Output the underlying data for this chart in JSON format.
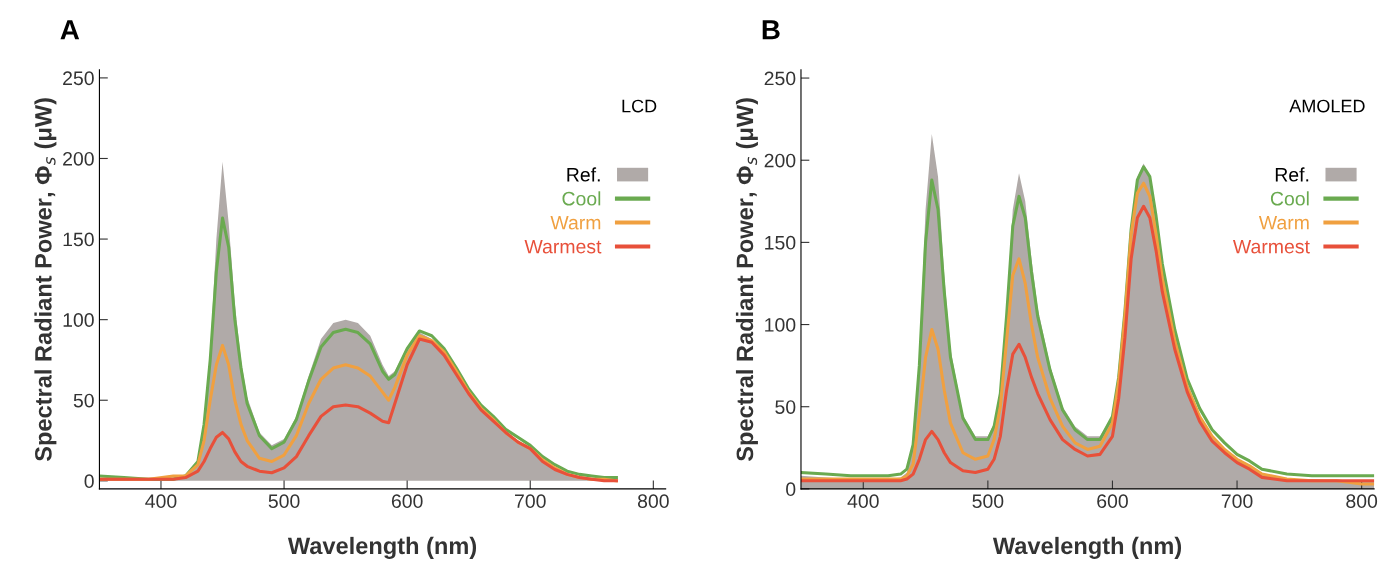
{
  "chart_data": [
    {
      "type": "line",
      "title": "A",
      "xlabel": "Wavelength (nm)",
      "ylabel": "Spectral Radiant Power, Φ$_{s}$ (μW)",
      "annotations": [
        "LCD"
      ],
      "x": [
        350,
        370,
        390,
        410,
        420,
        430,
        435,
        440,
        445,
        450,
        455,
        460,
        465,
        470,
        480,
        490,
        500,
        510,
        520,
        530,
        540,
        550,
        560,
        570,
        580,
        585,
        590,
        600,
        610,
        620,
        630,
        640,
        650,
        660,
        670,
        680,
        690,
        700,
        710,
        720,
        730,
        740,
        750,
        760,
        770
      ],
      "xlim": [
        350,
        810
      ],
      "ylim": [
        -5,
        255
      ],
      "xticks": [
        400,
        500,
        600,
        700,
        800
      ],
      "yticks": [
        0,
        50,
        100,
        150,
        200,
        250
      ],
      "grid": false,
      "legend": "right",
      "series": [
        {
          "name": "Ref.",
          "type": "area",
          "color": "#b0aaa8",
          "values": [
            1,
            1,
            1,
            2,
            4,
            12,
            35,
            80,
            150,
            198,
            160,
            110,
            75,
            52,
            30,
            22,
            26,
            40,
            65,
            88,
            98,
            100,
            98,
            90,
            72,
            65,
            68,
            83,
            92,
            88,
            80,
            68,
            55,
            45,
            38,
            30,
            25,
            20,
            13,
            8,
            4,
            2,
            1,
            0,
            0
          ]
        },
        {
          "name": "Cool",
          "color": "#6aaa50",
          "values": [
            3,
            2,
            1,
            1,
            3,
            12,
            35,
            75,
            130,
            163,
            145,
            100,
            70,
            48,
            28,
            20,
            24,
            38,
            62,
            83,
            92,
            94,
            92,
            85,
            68,
            63,
            66,
            82,
            93,
            90,
            82,
            70,
            57,
            47,
            40,
            32,
            27,
            22,
            15,
            10,
            6,
            4,
            3,
            2,
            2
          ]
        },
        {
          "name": "Warm",
          "color": "#f0a040",
          "values": [
            1,
            1,
            1,
            3,
            3,
            10,
            25,
            50,
            72,
            84,
            72,
            50,
            35,
            25,
            14,
            12,
            16,
            28,
            48,
            63,
            70,
            72,
            70,
            65,
            55,
            50,
            58,
            78,
            90,
            87,
            80,
            68,
            55,
            45,
            38,
            30,
            24,
            20,
            13,
            8,
            4,
            2,
            1,
            1,
            0
          ]
        },
        {
          "name": "Warmest",
          "color": "#e8503a",
          "values": [
            1,
            1,
            1,
            1,
            2,
            6,
            12,
            20,
            27,
            30,
            26,
            18,
            12,
            9,
            6,
            5,
            8,
            15,
            28,
            40,
            46,
            47,
            46,
            42,
            37,
            36,
            48,
            72,
            88,
            86,
            78,
            66,
            54,
            44,
            37,
            30,
            24,
            20,
            12,
            7,
            4,
            2,
            1,
            0,
            0
          ]
        }
      ]
    },
    {
      "type": "line",
      "title": "B",
      "xlabel": "Wavelength (nm)",
      "ylabel": "Spectral Radiant Power, Φ$_{s}$ (μW)",
      "annotations": [
        "AMOLED"
      ],
      "x": [
        350,
        370,
        390,
        410,
        420,
        430,
        435,
        440,
        445,
        450,
        455,
        460,
        465,
        470,
        480,
        490,
        500,
        505,
        510,
        515,
        520,
        525,
        530,
        535,
        540,
        550,
        560,
        570,
        580,
        590,
        600,
        605,
        610,
        615,
        620,
        625,
        630,
        635,
        640,
        650,
        660,
        670,
        680,
        690,
        700,
        710,
        720,
        740,
        760,
        780,
        800,
        810
      ],
      "xlim": [
        350,
        810
      ],
      "ylim": [
        0,
        255
      ],
      "xticks": [
        400,
        500,
        600,
        700,
        800
      ],
      "yticks": [
        0,
        50,
        100,
        150,
        200,
        250
      ],
      "grid": false,
      "legend": "right",
      "series": [
        {
          "name": "Ref.",
          "type": "area",
          "color": "#b0aaa8",
          "values": [
            8,
            7,
            6,
            6,
            6,
            7,
            10,
            25,
            80,
            170,
            216,
            190,
            130,
            85,
            45,
            32,
            32,
            40,
            60,
            110,
            170,
            192,
            175,
            140,
            110,
            75,
            50,
            38,
            32,
            32,
            45,
            70,
            110,
            160,
            190,
            198,
            190,
            165,
            135,
            95,
            65,
            45,
            32,
            24,
            18,
            14,
            9,
            6,
            6,
            5,
            5,
            5
          ]
        },
        {
          "name": "Cool",
          "color": "#6aaa50",
          "values": [
            10,
            9,
            8,
            8,
            8,
            9,
            12,
            27,
            75,
            150,
            188,
            170,
            120,
            80,
            43,
            30,
            30,
            38,
            58,
            105,
            160,
            178,
            165,
            132,
            105,
            72,
            48,
            36,
            30,
            30,
            44,
            68,
            108,
            158,
            188,
            196,
            190,
            166,
            137,
            97,
            67,
            49,
            36,
            28,
            21,
            17,
            12,
            9,
            8,
            8,
            8,
            8
          ]
        },
        {
          "name": "Warm",
          "color": "#f0a040",
          "values": [
            6,
            6,
            6,
            6,
            6,
            6,
            8,
            15,
            45,
            80,
            97,
            85,
            60,
            40,
            22,
            18,
            20,
            30,
            50,
            90,
            130,
            140,
            125,
            100,
            80,
            55,
            38,
            28,
            24,
            26,
            40,
            65,
            105,
            155,
            180,
            186,
            178,
            155,
            128,
            90,
            62,
            44,
            32,
            24,
            18,
            14,
            9,
            6,
            5,
            5,
            3,
            3
          ]
        },
        {
          "name": "Warmest",
          "color": "#e8503a",
          "values": [
            5,
            5,
            5,
            5,
            5,
            5,
            6,
            9,
            18,
            30,
            35,
            30,
            22,
            16,
            11,
            10,
            12,
            18,
            32,
            60,
            82,
            88,
            80,
            68,
            58,
            42,
            30,
            24,
            20,
            21,
            32,
            55,
            92,
            140,
            165,
            172,
            165,
            145,
            120,
            85,
            59,
            41,
            29,
            22,
            16,
            12,
            7,
            5,
            5,
            5,
            5,
            5
          ]
        }
      ]
    }
  ]
}
